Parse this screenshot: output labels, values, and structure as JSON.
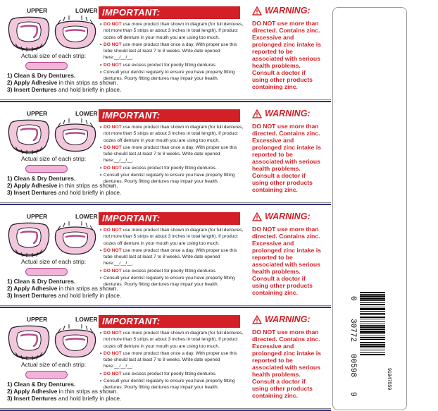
{
  "labels": {
    "upper": "UPPER",
    "lower": "LOWER",
    "strip_caption": "Actual size of each strip:",
    "steps": [
      {
        "bold": "1) Clean & Dry Dentures.",
        "rest": ""
      },
      {
        "bold": "2) Apply Adhesive",
        "rest": " in thin strips as shown."
      },
      {
        "bold": "3) Insert Dentures",
        "rest": " and hold briefly in place."
      }
    ],
    "important_title": "IMPORTANT:",
    "important_items": [
      {
        "lead": "DO NOT",
        "text": " use more product than shown in diagram (for full dentures, not more than 5 strips or about 3 inches in total length). If product oozes off denture in your mouth you are using too much."
      },
      {
        "lead": "DO NOT",
        "text": " use more product than once a day. With proper use this tube should last at least 7 to 8 weeks. Write date opened here:__/__/__."
      },
      {
        "lead": "DO NOT",
        "text": " use excess product for poorly fitting dentures."
      },
      {
        "lead": "",
        "text": "Consult your dentist regularly to ensure you have properly fitting dentures. Poorly fitting dentures may impair your health."
      }
    ],
    "warning_title": "WARNING:",
    "warning_lead": "DO NOT",
    "warning_text": " use more than directed. Contains zinc. Excessive and prolonged zinc intake is reported to be associated with serious health problems. Consult a doctor if using other products containing zinc."
  },
  "panel_count": 4,
  "barcode": {
    "digits": "3 0772 00598 9",
    "prefix": "0",
    "left_group": "30772",
    "right_group": "00598",
    "check": "9",
    "code": "91847059"
  },
  "colors": {
    "red": "#d32027",
    "navy": "#2b2f7a",
    "pink_strip": "#f0b4d8",
    "pink_outline": "#b8488d"
  }
}
